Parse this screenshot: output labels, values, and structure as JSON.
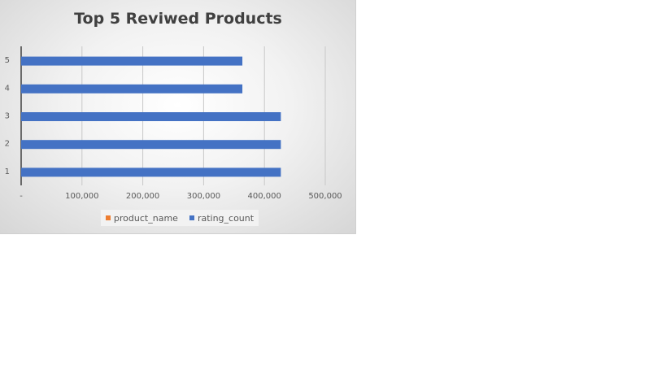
{
  "chart_data": {
    "type": "bar",
    "orientation": "horizontal",
    "title": "Top 5 Reviwed Products",
    "categories": [
      "1",
      "2",
      "3",
      "4",
      "5"
    ],
    "series": [
      {
        "name": "product_name",
        "values": [
          0,
          0,
          0,
          0,
          0
        ],
        "color": "#ED7D31"
      },
      {
        "name": "rating_count",
        "values": [
          426973,
          426973,
          426973,
          363713,
          363713
        ],
        "color": "#4472C4"
      }
    ],
    "x_ticks": [
      "-",
      "100,000",
      "200,000",
      "300,000",
      "400,000",
      "500,000"
    ],
    "xlim": [
      0,
      500000
    ],
    "grid": true,
    "legend_position": "bottom"
  }
}
